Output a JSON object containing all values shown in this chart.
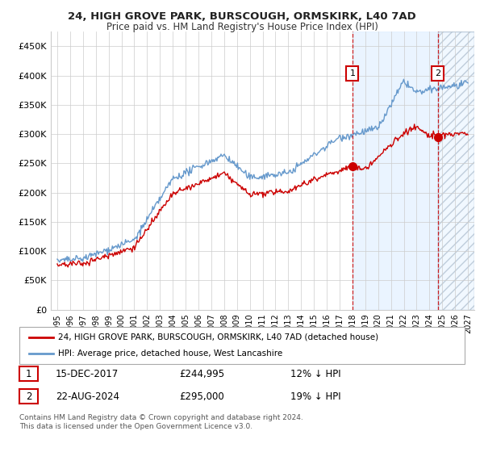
{
  "title1": "24, HIGH GROVE PARK, BURSCOUGH, ORMSKIRK, L40 7AD",
  "title2": "Price paid vs. HM Land Registry's House Price Index (HPI)",
  "legend1": "24, HIGH GROVE PARK, BURSCOUGH, ORMSKIRK, L40 7AD (detached house)",
  "legend2": "HPI: Average price, detached house, West Lancashire",
  "ann1_label": "1",
  "ann1_date": "15-DEC-2017",
  "ann1_price": "£244,995",
  "ann1_hpi": "12% ↓ HPI",
  "ann1_x": 2018.0,
  "ann1_y": 244995,
  "ann2_label": "2",
  "ann2_date": "22-AUG-2024",
  "ann2_price": "£295,000",
  "ann2_hpi": "19% ↓ HPI",
  "ann2_x": 2024.65,
  "ann2_y": 295000,
  "footer1": "Contains HM Land Registry data © Crown copyright and database right 2024.",
  "footer2": "This data is licensed under the Open Government Licence v3.0.",
  "line_color_red": "#cc0000",
  "line_color_blue": "#6699cc",
  "dot_color_red": "#cc0000",
  "bg_shade_color": "#ddeeff",
  "grid_color": "#cccccc",
  "ylim_min": 0,
  "ylim_max": 475000,
  "xlim_min": 1994.5,
  "xlim_max": 2027.5,
  "yticks": [
    0,
    50000,
    100000,
    150000,
    200000,
    250000,
    300000,
    350000,
    400000,
    450000
  ],
  "ytick_labels": [
    "£0",
    "£50K",
    "£100K",
    "£150K",
    "£200K",
    "£250K",
    "£300K",
    "£350K",
    "£400K",
    "£450K"
  ],
  "xticks": [
    1995,
    1996,
    1997,
    1998,
    1999,
    2000,
    2001,
    2002,
    2003,
    2004,
    2005,
    2006,
    2007,
    2008,
    2009,
    2010,
    2011,
    2012,
    2013,
    2014,
    2015,
    2016,
    2017,
    2018,
    2019,
    2020,
    2021,
    2022,
    2023,
    2024,
    2025,
    2026,
    2027
  ]
}
